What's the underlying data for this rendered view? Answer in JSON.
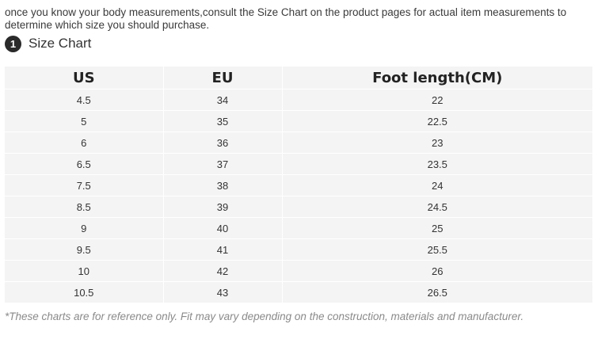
{
  "intro": {
    "line1": "once you know your body measurements,consult the Size Chart on the product pages for actual item measurements to",
    "line2": "determine which size you should purchase."
  },
  "section": {
    "step_number": "1",
    "title": "Size Chart"
  },
  "size_table": {
    "headers": [
      "US",
      "EU",
      "Foot length(CM)"
    ],
    "rows": [
      [
        "4.5",
        "34",
        "22"
      ],
      [
        "5",
        "35",
        "22.5"
      ],
      [
        "6",
        "36",
        "23"
      ],
      [
        "6.5",
        "37",
        "23.5"
      ],
      [
        "7.5",
        "38",
        "24"
      ],
      [
        "8.5",
        "39",
        "24.5"
      ],
      [
        "9",
        "40",
        "25"
      ],
      [
        "9.5",
        "41",
        "25.5"
      ],
      [
        "10",
        "42",
        "26"
      ],
      [
        "10.5",
        "43",
        "26.5"
      ]
    ]
  },
  "footnote": "*These charts are for reference only. Fit may vary depending on the construction, materials and manufacturer."
}
